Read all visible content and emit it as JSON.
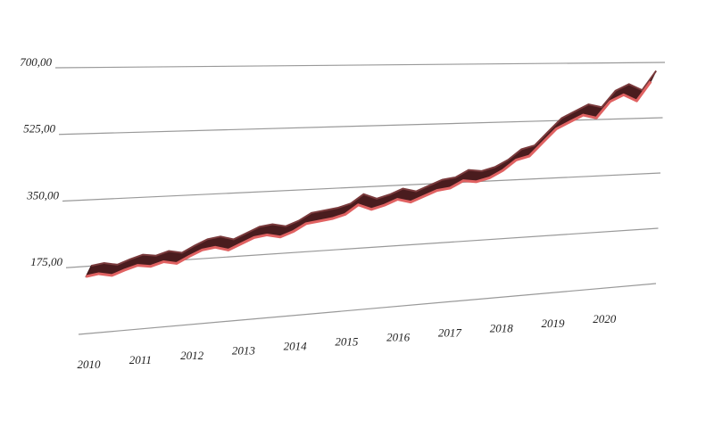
{
  "chart_data": {
    "type": "line3d",
    "x": [
      2010,
      2010.25,
      2010.5,
      2010.75,
      2011,
      2011.25,
      2011.5,
      2011.75,
      2012,
      2012.25,
      2012.5,
      2012.75,
      2013,
      2013.25,
      2013.5,
      2013.75,
      2014,
      2014.25,
      2014.5,
      2014.75,
      2015,
      2015.25,
      2015.5,
      2015.75,
      2016,
      2016.25,
      2016.5,
      2016.75,
      2017,
      2017.25,
      2017.5,
      2017.75,
      2018,
      2018.25,
      2018.5,
      2018.75,
      2019,
      2019.25,
      2019.5,
      2019.75,
      2020,
      2020.25,
      2020.5,
      2020.75
    ],
    "series": [
      {
        "color": "#e06262",
        "values": [
          150,
          155,
          148,
          160,
          170,
          165,
          175,
          168,
          185,
          200,
          205,
          195,
          210,
          225,
          230,
          222,
          235,
          255,
          260,
          265,
          275,
          300,
          285,
          295,
          310,
          300,
          315,
          330,
          335,
          355,
          350,
          360,
          380,
          410,
          420,
          460,
          500,
          520,
          540,
          530,
          580,
          600,
          580,
          640
        ]
      }
    ],
    "xlim": [
      2009.8,
      2021
    ],
    "xticks": [
      2010,
      2011,
      2012,
      2013,
      2014,
      2015,
      2016,
      2017,
      2018,
      2019,
      2020
    ],
    "ylim": [
      0,
      700
    ],
    "yticks": [
      {
        "value": 175,
        "label": "175,00"
      },
      {
        "value": 350,
        "label": "350,00"
      },
      {
        "value": 525,
        "label": "525,00"
      },
      {
        "value": 700,
        "label": "700,00"
      }
    ],
    "grid": true
  }
}
